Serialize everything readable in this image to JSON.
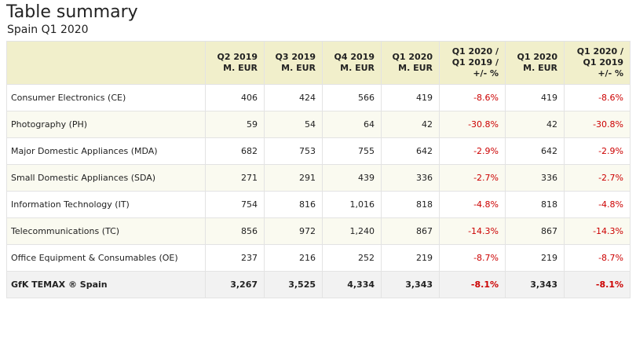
{
  "header": {
    "title": "Table summary",
    "subtitle": "Spain Q1 2020"
  },
  "table": {
    "columns": [
      {
        "line1": "",
        "line2": "",
        "line3": ""
      },
      {
        "line1": "Q2 2019",
        "line2": "M. EUR",
        "line3": ""
      },
      {
        "line1": "Q3 2019",
        "line2": "M. EUR",
        "line3": ""
      },
      {
        "line1": "Q4 2019",
        "line2": "M. EUR",
        "line3": ""
      },
      {
        "line1": "Q1 2020",
        "line2": "M. EUR",
        "line3": ""
      },
      {
        "line1": "Q1 2020 /",
        "line2": "Q1 2019 /",
        "line3": "+/- %"
      },
      {
        "line1": "Q1 2020",
        "line2": "M. EUR",
        "line3": ""
      },
      {
        "line1": "Q1 2020 /",
        "line2": "Q1 2019",
        "line3": "+/- %"
      }
    ],
    "rows": [
      [
        "Consumer Electronics (CE)",
        "406",
        "424",
        "566",
        "419",
        "-8.6%",
        "419",
        "-8.6%"
      ],
      [
        "Photography (PH)",
        "59",
        "54",
        "64",
        "42",
        "-30.8%",
        "42",
        "-30.8%"
      ],
      [
        "Major Domestic Appliances (MDA)",
        "682",
        "753",
        "755",
        "642",
        "-2.9%",
        "642",
        "-2.9%"
      ],
      [
        "Small Domestic Appliances (SDA)",
        "271",
        "291",
        "439",
        "336",
        "-2.7%",
        "336",
        "-2.7%"
      ],
      [
        "Information Technology (IT)",
        "754",
        "816",
        "1,016",
        "818",
        "-4.8%",
        "818",
        "-4.8%"
      ],
      [
        "Telecommunications (TC)",
        "856",
        "972",
        "1,240",
        "867",
        "-14.3%",
        "867",
        "-14.3%"
      ],
      [
        "Office Equipment & Consumables (OE)",
        "237",
        "216",
        "252",
        "219",
        "-8.7%",
        "219",
        "-8.7%"
      ],
      [
        "GfK TEMAX ® Spain",
        "3,267",
        "3,525",
        "4,334",
        "3,343",
        "-8.1%",
        "3,343",
        "-8.1%"
      ]
    ]
  },
  "colors": {
    "header_bg": "#f1efcb",
    "negative": "#cc0000",
    "total_bg": "#f2f2f2"
  }
}
